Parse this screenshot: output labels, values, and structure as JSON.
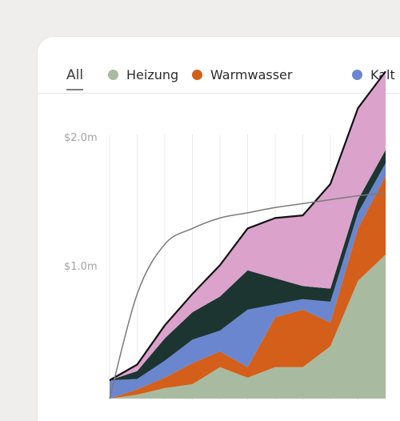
{
  "tabs": {
    "all_label": "All",
    "legend": [
      {
        "label": "Heizung",
        "color": "#a8bba0"
      },
      {
        "label": "Warmwasser",
        "color": "#d35f1a"
      },
      {
        "label": "Kalt",
        "color": "#6a86cf"
      }
    ]
  },
  "chart_data": {
    "type": "area",
    "y_ticks": [
      "$2.0m",
      "$1.0m"
    ],
    "ylim": [
      0,
      2.0
    ],
    "x": [
      0,
      1,
      2,
      3,
      4,
      5,
      6,
      7,
      8,
      9,
      10
    ],
    "series": [
      {
        "name": "Heizung",
        "color": "#a8bba0",
        "values": [
          0.0,
          0.03,
          0.08,
          0.11,
          0.24,
          0.16,
          0.24,
          0.24,
          0.4,
          0.9,
          1.1
        ]
      },
      {
        "name": "Warmwasser",
        "color": "#d35f1a",
        "values": [
          0.0,
          0.04,
          0.08,
          0.16,
          0.12,
          0.08,
          0.38,
          0.44,
          0.18,
          0.4,
          0.6
        ]
      },
      {
        "name": "Kalt",
        "color": "#6a86cf",
        "values": [
          0.14,
          0.08,
          0.13,
          0.18,
          0.16,
          0.44,
          0.1,
          0.08,
          0.16,
          0.12,
          0.1
        ]
      },
      {
        "color": "#1c3530",
        "values": [
          0.0,
          0.06,
          0.17,
          0.21,
          0.26,
          0.3,
          0.2,
          0.1,
          0.1,
          0.1,
          0.1
        ]
      },
      {
        "color": "#dba2cc",
        "values": [
          0.0,
          0.05,
          0.1,
          0.14,
          0.24,
          0.32,
          0.46,
          0.54,
          0.8,
          0.7,
          0.6
        ]
      }
    ],
    "total_line_color": "#111111",
    "trend_line_color": "#7a7a7a",
    "trend": [
      0.0,
      0.8,
      1.18,
      1.3,
      1.38,
      1.42,
      1.46,
      1.49,
      1.52,
      1.55,
      1.57
    ]
  }
}
